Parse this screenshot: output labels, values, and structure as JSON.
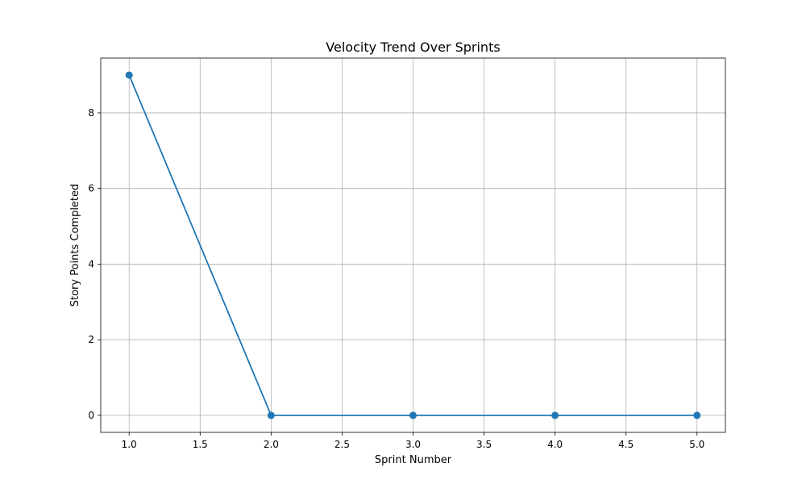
{
  "chart_data": {
    "type": "line",
    "title": "Velocity Trend Over Sprints",
    "xlabel": "Sprint Number",
    "ylabel": "Story Points Completed",
    "xlim": [
      0.8,
      5.2
    ],
    "ylim": [
      -0.45,
      9.45
    ],
    "x_ticks": [
      1.0,
      1.5,
      2.0,
      2.5,
      3.0,
      3.5,
      4.0,
      4.5,
      5.0
    ],
    "x_tick_labels": [
      "1.0",
      "1.5",
      "2.0",
      "2.5",
      "3.0",
      "3.5",
      "4.0",
      "4.5",
      "5.0"
    ],
    "y_ticks": [
      0,
      2,
      4,
      6,
      8
    ],
    "y_tick_labels": [
      "0",
      "2",
      "4",
      "6",
      "8"
    ],
    "grid": true,
    "series": [
      {
        "color": "#1f77b4",
        "marker": "circle",
        "x": [
          1,
          2,
          3,
          4,
          5
        ],
        "y": [
          9,
          0,
          0,
          0,
          0
        ]
      }
    ]
  }
}
